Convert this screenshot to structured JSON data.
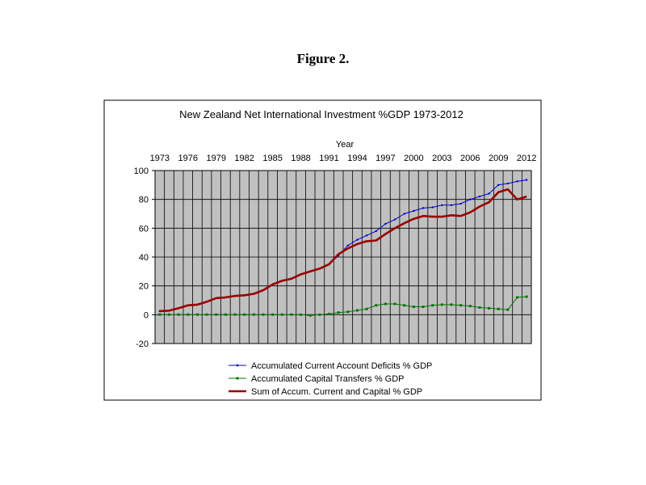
{
  "figure_title": "Figure 2.",
  "chart_data": {
    "type": "line",
    "title": "New Zealand Net International Investment %GDP  1973-2012",
    "xlabel": "Year",
    "ylabel": "",
    "x_ticks": [
      "1973",
      "1976",
      "1979",
      "1982",
      "1985",
      "1988",
      "1991",
      "1994",
      "1997",
      "2000",
      "2003",
      "2006",
      "2009",
      "2012"
    ],
    "x": [
      1973,
      1974,
      1975,
      1976,
      1977,
      1978,
      1979,
      1980,
      1981,
      1982,
      1983,
      1984,
      1985,
      1986,
      1987,
      1988,
      1989,
      1990,
      1991,
      1992,
      1993,
      1994,
      1995,
      1996,
      1997,
      1998,
      1999,
      2000,
      2001,
      2002,
      2003,
      2004,
      2005,
      2006,
      2007,
      2008,
      2009,
      2010,
      2011,
      2012
    ],
    "xlim": [
      1973,
      2012
    ],
    "ylim": [
      -20,
      100
    ],
    "y_ticks": [
      -20,
      0,
      20,
      40,
      60,
      80,
      100
    ],
    "grid": true,
    "legend_position": "bottom",
    "plot_background": "#c0c0c0",
    "series": [
      {
        "name": "Accumulated Current Account Deficits % GDP",
        "color": "#0000cc",
        "marker": "dot",
        "values": [
          2.5,
          2.8,
          4.5,
          6.5,
          7.0,
          9.0,
          11.5,
          12.0,
          13.0,
          13.5,
          14.5,
          17.0,
          21.0,
          23.5,
          25.0,
          28.0,
          30.0,
          32.0,
          35.0,
          41.0,
          48.0,
          52.0,
          55.0,
          58.0,
          63.0,
          66.0,
          70.0,
          72.0,
          74.0,
          74.5,
          76.0,
          76.0,
          77.0,
          80.0,
          82.0,
          84.0,
          90.0,
          91.0,
          92.5,
          93.5
        ]
      },
      {
        "name": "Accumulated Capital Transfers % GDP",
        "color": "#007700",
        "marker": "square",
        "values": [
          0.1,
          0.1,
          0.1,
          0.1,
          0.1,
          0.1,
          0.1,
          0.1,
          0.1,
          0.1,
          0.1,
          0.1,
          0.1,
          0.1,
          0.1,
          0.0,
          -0.5,
          0.0,
          0.5,
          1.5,
          2.0,
          3.0,
          4.0,
          6.5,
          7.5,
          7.5,
          6.5,
          5.5,
          5.5,
          6.5,
          7.0,
          7.0,
          6.5,
          6.0,
          5.0,
          4.5,
          4.0,
          3.5,
          12.0,
          12.5
        ]
      },
      {
        "name": "Sum of Accum. Current and Capital % GDP",
        "color": "#990000",
        "marker": "none",
        "values": [
          2.5,
          2.8,
          4.5,
          6.5,
          7.0,
          9.0,
          11.5,
          12.0,
          13.0,
          13.5,
          14.5,
          17.0,
          21.0,
          23.5,
          25.0,
          28.0,
          30.0,
          32.0,
          35.0,
          42.0,
          46.0,
          49.0,
          51.0,
          51.5,
          56.0,
          60.0,
          63.5,
          66.5,
          68.5,
          68.0,
          68.0,
          69.0,
          68.5,
          71.0,
          75.0,
          78.0,
          85.0,
          87.0,
          80.0,
          82.0
        ]
      }
    ]
  }
}
